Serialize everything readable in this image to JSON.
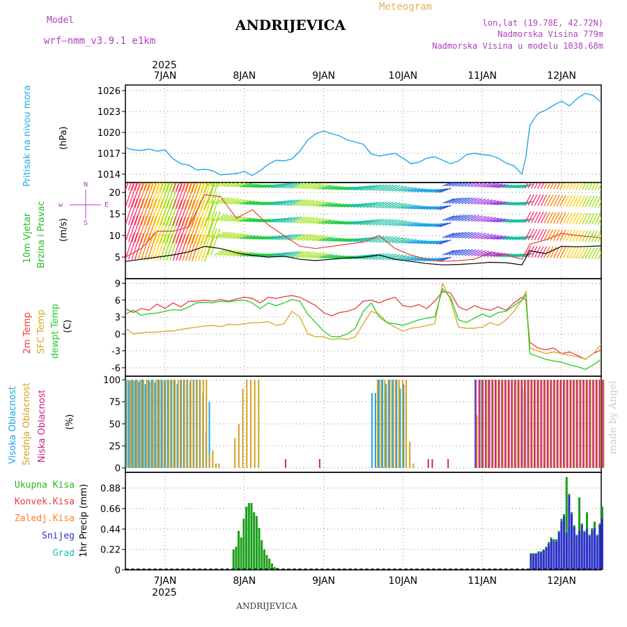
{
  "header": {
    "model_label": "Model",
    "model_name": "wrf—nmm_v3.9.1 e1km",
    "product": "Meteogram",
    "station": "ANDRIJEVICA",
    "coords": "lon,lat (19.78E, 42.72N)",
    "elevation": "Nadmorska Visina 779m",
    "model_elevation": "Nadmorska Visina u modelu 1038.68m",
    "top_year": "2025",
    "bottom_year": "2025",
    "footer_station": "ANDRIJEVICA",
    "credit": "made by Angel"
  },
  "colors": {
    "pressure": "#22a9e6",
    "temp2m": "#ee3b3b",
    "sfc": "#daa520",
    "dewpt": "#22cc22",
    "high_cloud": "#1aa3e8",
    "mid_cloud": "#d4a020",
    "low_cloud": "#c8208a",
    "total_precip": "#1aa01a",
    "conv": "#ee3b3b",
    "frozen": "#ff7f24",
    "snow": "#3030d0",
    "hail": "#20c0b0",
    "wind_label": "#22bb22",
    "compass": "#b040c0"
  },
  "panel_labels": {
    "pressure": {
      "name": "Pritisak na nivou mora",
      "unit": "(hPa)"
    },
    "wind": {
      "name1": "10m Vjetar",
      "name2": "Brzina i Pravac",
      "unit": "(m/s)",
      "compass_w": "w",
      "compass_e": "E",
      "compass_n": "N",
      "compass_s": "S"
    },
    "temp": {
      "t2m": "2m Temp",
      "sfc": "SFC Temp",
      "dew": "dewpt Temp",
      "unit": "(C)"
    },
    "cloud": {
      "high": "Visoka Oblacnost",
      "mid": "Srednja Oblacnost",
      "low": "Niska Oblacnost",
      "unit": "(%)"
    },
    "precip": {
      "total": "Ukupna Kisa",
      "conv": "Konvek.Kisa",
      "frozen": "Zaledj.Kisa",
      "snow": "Snijeg",
      "hail": "Grad",
      "unit": "1hr Precip (mm)"
    }
  },
  "chart_data": [
    {
      "type": "line",
      "title": "Pritisak na nivou mora",
      "ylabel": "(hPa)",
      "xlabel": "",
      "x": [
        6.5,
        6.6,
        6.7,
        6.8,
        6.9,
        7.0,
        7.1,
        7.2,
        7.3,
        7.4,
        7.5,
        7.6,
        7.7,
        7.8,
        7.9,
        8.0,
        8.1,
        8.2,
        8.3,
        8.4,
        8.5,
        8.6,
        8.7,
        8.8,
        8.9,
        9.0,
        9.1,
        9.2,
        9.3,
        9.4,
        9.5,
        9.6,
        9.7,
        9.8,
        9.9,
        10.0,
        10.1,
        10.2,
        10.3,
        10.4,
        10.5,
        10.6,
        10.7,
        10.8,
        10.9,
        11.0,
        11.1,
        11.2,
        11.3,
        11.4,
        11.5,
        11.55,
        11.6,
        11.7,
        11.8,
        11.9,
        12.0,
        12.1,
        12.2,
        12.3,
        12.4,
        12.5
      ],
      "values": [
        1017.8,
        1017.5,
        1017.4,
        1017.6,
        1017.3,
        1017.5,
        1016.2,
        1015.5,
        1015.3,
        1014.6,
        1014.7,
        1014.5,
        1013.9,
        1014.0,
        1014.1,
        1014.4,
        1013.8,
        1014.5,
        1015.4,
        1016.0,
        1015.9,
        1016.2,
        1017.3,
        1018.9,
        1019.8,
        1020.2,
        1019.8,
        1019.5,
        1018.9,
        1018.6,
        1018.3,
        1016.9,
        1016.6,
        1016.8,
        1017.0,
        1016.3,
        1015.5,
        1015.7,
        1016.3,
        1016.5,
        1016.0,
        1015.5,
        1015.9,
        1016.8,
        1017.0,
        1016.8,
        1016.7,
        1016.3,
        1015.6,
        1015.2,
        1014.0,
        1016.5,
        1021.0,
        1022.7,
        1023.2,
        1023.9,
        1024.5,
        1023.8,
        1024.9,
        1025.6,
        1025.3,
        1024.3
      ],
      "yticks": [
        1014,
        1017,
        1020,
        1023,
        1026
      ],
      "ylim": [
        1012.8,
        1026.8
      ],
      "grid": true
    },
    {
      "type": "line",
      "title": "10m Vjetar Brzina i Pravac",
      "ylabel": "(m/s)",
      "x": [
        6.5,
        6.7,
        6.9,
        7.1,
        7.3,
        7.5,
        7.7,
        7.9,
        8.1,
        8.3,
        8.5,
        8.7,
        8.9,
        9.1,
        9.3,
        9.5,
        9.7,
        9.9,
        10.1,
        10.3,
        10.5,
        10.7,
        10.9,
        11.1,
        11.3,
        11.5,
        11.6,
        11.8,
        12.0,
        12.2,
        12.5
      ],
      "series": [
        {
          "name": "speed",
          "values": [
            4.0,
            4.5,
            5.0,
            5.5,
            6.2,
            7.5,
            7.0,
            6.0,
            5.4,
            5.0,
            5.2,
            4.5,
            4.2,
            4.5,
            4.8,
            5.0,
            5.5,
            4.5,
            4.0,
            3.5,
            3.2,
            3.3,
            3.5,
            3.8,
            3.7,
            3.2,
            6.5,
            5.8,
            7.5,
            7.4,
            7.6
          ]
        },
        {
          "name": "gust",
          "values": [
            5.0,
            7.0,
            11.0,
            11.0,
            12.0,
            19.5,
            19.0,
            14.0,
            16.0,
            12.5,
            10.0,
            7.5,
            7.0,
            7.5,
            8.0,
            8.5,
            10.0,
            7.0,
            5.5,
            4.5,
            4.0,
            4.2,
            4.5,
            6.0,
            5.5,
            4.5,
            8.0,
            9.0,
            10.5,
            10.0,
            9.5
          ]
        }
      ],
      "yticks": [
        5,
        10,
        15,
        20
      ],
      "ylim": [
        0,
        22.3
      ],
      "grid": true
    },
    {
      "type": "line",
      "title": "2m Temp / SFC Temp / dewpt Temp",
      "ylabel": "(C)",
      "x": [
        6.5,
        6.6,
        6.7,
        6.8,
        6.9,
        7.0,
        7.1,
        7.2,
        7.3,
        7.4,
        7.5,
        7.6,
        7.7,
        7.8,
        7.9,
        8.0,
        8.1,
        8.2,
        8.3,
        8.4,
        8.5,
        8.6,
        8.7,
        8.8,
        8.9,
        9.0,
        9.1,
        9.2,
        9.3,
        9.4,
        9.5,
        9.6,
        9.7,
        9.8,
        9.9,
        10.0,
        10.1,
        10.2,
        10.3,
        10.4,
        10.5,
        10.6,
        10.7,
        10.8,
        10.9,
        11.0,
        11.1,
        11.2,
        11.3,
        11.4,
        11.5,
        11.55,
        11.6,
        11.7,
        11.8,
        11.9,
        12.0,
        12.1,
        12.2,
        12.3,
        12.4,
        12.5
      ],
      "series": [
        {
          "name": "2m Temp",
          "values": [
            4.5,
            3.8,
            4.5,
            4.2,
            5.3,
            4.5,
            5.5,
            4.8,
            5.8,
            5.8,
            6.0,
            5.8,
            6.1,
            5.8,
            6.2,
            6.5,
            6.3,
            5.5,
            6.5,
            6.3,
            6.6,
            6.8,
            6.5,
            5.8,
            5.0,
            3.8,
            3.2,
            3.8,
            4.0,
            4.5,
            5.8,
            6.0,
            5.5,
            6.1,
            6.5,
            5.0,
            4.8,
            5.2,
            4.5,
            5.8,
            7.5,
            7.3,
            4.8,
            4.2,
            5.0,
            4.5,
            4.2,
            4.8,
            4.2,
            5.5,
            6.5,
            6.0,
            -1.5,
            -2.5,
            -2.8,
            -2.5,
            -3.5,
            -3.2,
            -3.8,
            -4.5,
            -3.5,
            -2.8
          ]
        },
        {
          "name": "SFC Temp",
          "values": [
            1.0,
            0.0,
            0.2,
            0.3,
            0.3,
            0.5,
            0.5,
            0.8,
            1.0,
            1.2,
            1.4,
            1.5,
            1.3,
            1.7,
            1.6,
            1.8,
            2.0,
            2.0,
            2.2,
            1.5,
            1.8,
            4.0,
            3.0,
            0.0,
            -0.5,
            -0.5,
            -1.0,
            -0.8,
            -1.0,
            -0.5,
            1.8,
            4.0,
            3.5,
            2.0,
            1.2,
            0.5,
            1.0,
            1.2,
            1.5,
            1.8,
            9.0,
            6.0,
            1.2,
            1.0,
            1.0,
            1.2,
            2.0,
            1.5,
            2.5,
            4.0,
            6.0,
            7.5,
            -2.5,
            -3.0,
            -3.5,
            -3.2,
            -3.5,
            -3.8,
            -4.0,
            -4.5,
            -3.5,
            -1.8
          ]
        },
        {
          "name": "dewpt Temp",
          "values": [
            3.5,
            4.2,
            3.3,
            3.6,
            3.7,
            4.0,
            4.3,
            4.2,
            4.8,
            5.5,
            5.6,
            5.5,
            5.8,
            5.7,
            5.9,
            6.0,
            5.5,
            4.5,
            5.5,
            5.0,
            5.5,
            6.1,
            5.8,
            3.5,
            2.0,
            0.5,
            -0.5,
            -0.5,
            0.0,
            1.0,
            4.0,
            5.5,
            3.0,
            2.0,
            1.8,
            1.5,
            2.0,
            2.5,
            2.8,
            3.0,
            8.0,
            6.5,
            2.5,
            2.0,
            2.8,
            3.5,
            3.0,
            3.8,
            4.0,
            5.0,
            6.0,
            7.0,
            -3.5,
            -4.0,
            -4.5,
            -4.8,
            -5.0,
            -5.5,
            -5.8,
            -6.3,
            -5.5,
            -4.5
          ]
        }
      ],
      "yticks": [
        -6,
        -3,
        0,
        3,
        6,
        9
      ],
      "ylim": [
        -7.5,
        9.8
      ],
      "grid": true
    },
    {
      "type": "bar",
      "title": "Visoka / Srednja / Niska Oblacnost",
      "ylabel": "(%)",
      "series": [
        {
          "name": "Visoka Oblacnost",
          "segments": [
            {
              "x0": 6.5,
              "x1": 7.55,
              "values": [
                100,
                99,
                100,
                100,
                98,
                100,
                95,
                100,
                100,
                97,
                100,
                100,
                99,
                100,
                100,
                100,
                95,
                100,
                100,
                100,
                98,
                100,
                100,
                100,
                85,
                40,
                75
              ]
            },
            {
              "x0": 9.6,
              "x1": 10.0,
              "values": [
                85,
                85,
                100,
                100,
                95,
                100,
                100,
                100,
                90,
                95
              ]
            },
            {
              "x0": 10.9,
              "x1": 11.5,
              "values": [
                100,
                100,
                100,
                62,
                100,
                100,
                100,
                90
              ]
            }
          ]
        },
        {
          "name": "Srednja Oblacnost",
          "segments": [
            {
              "x0": 6.5,
              "x1": 7.65,
              "values": [
                100,
                100,
                99,
                100,
                100,
                100,
                100,
                98,
                100,
                100,
                100,
                100,
                100,
                100,
                100,
                100,
                100,
                100,
                100,
                100,
                100,
                100,
                100,
                100,
                100,
                100,
                15,
                20,
                5,
                5
              ]
            },
            {
              "x0": 7.85,
              "x1": 8.15,
              "values": [
                34,
                50,
                90,
                100,
                100,
                100,
                100
              ]
            },
            {
              "x0": 9.65,
              "x1": 10.1,
              "values": [
                100,
                100,
                100,
                100,
                100,
                100,
                100,
                100,
                100,
                30,
                5
              ]
            },
            {
              "x0": 10.9,
              "x1": 12.5,
              "values": [
                60,
                100,
                100,
                100,
                100,
                100,
                100,
                100,
                100,
                100,
                100,
                100,
                100,
                100,
                100,
                100,
                100,
                100,
                100,
                100,
                100,
                100,
                100,
                100,
                100,
                100,
                100,
                100,
                100,
                100,
                100,
                100,
                100,
                100,
                100,
                100,
                100,
                100,
                100,
                100
              ]
            }
          ]
        },
        {
          "name": "Niska Oblacnost",
          "segments": [
            {
              "x0": 8.5,
              "x1": 8.53,
              "values": [
                10
              ]
            },
            {
              "x0": 8.93,
              "x1": 8.96,
              "values": [
                10
              ]
            },
            {
              "x0": 10.3,
              "x1": 10.33,
              "values": [
                10
              ]
            },
            {
              "x0": 10.35,
              "x1": 10.38,
              "values": [
                10
              ]
            },
            {
              "x0": 10.55,
              "x1": 10.58,
              "values": [
                10
              ]
            },
            {
              "x0": 10.9,
              "x1": 12.5,
              "values": [
                100,
                100,
                100,
                100,
                100,
                100,
                100,
                100,
                100,
                100,
                100,
                100,
                100,
                100,
                100,
                100,
                100,
                100,
                100,
                100,
                100,
                100,
                100,
                100,
                100,
                100,
                100,
                100,
                100,
                100,
                100,
                100,
                100,
                100,
                100,
                100,
                100,
                100,
                100,
                100
              ]
            }
          ]
        }
      ],
      "yticks": [
        0,
        25,
        50,
        75,
        100
      ],
      "ylim": [
        -5,
        104
      ],
      "grid": true
    },
    {
      "type": "bar",
      "title": "1hr Precip",
      "ylabel": "1hr Precip (mm)",
      "series": [
        {
          "name": "Ukupna Kisa",
          "segments": [
            {
              "x0": 7.85,
              "x1": 8.4,
              "values": [
                0.22,
                0.25,
                0.42,
                0.35,
                0.55,
                0.68,
                0.72,
                0.72,
                0.62,
                0.58,
                0.45,
                0.32,
                0.22,
                0.16,
                0.12,
                0.07,
                0.03,
                0.02
              ]
            },
            {
              "x0": 11.6,
              "x1": 12.5,
              "values": [
                0.18,
                0.18,
                0.18,
                0.2,
                0.2,
                0.22,
                0.25,
                0.3,
                0.35,
                0.33,
                0.33,
                0.42,
                0.55,
                0.6,
                1.0,
                0.82,
                0.62,
                0.48,
                0.38,
                0.78,
                0.5,
                0.42,
                0.62,
                0.38,
                0.45,
                0.52,
                0.38,
                0.5,
                0.68
              ]
            }
          ]
        },
        {
          "name": "Snijeg",
          "segments": [
            {
              "x0": 11.6,
              "x1": 12.5,
              "values": [
                0.17,
                0.17,
                0.17,
                0.19,
                0.19,
                0.21,
                0.24,
                0.28,
                0.33,
                0.31,
                0.31,
                0.4,
                0.52,
                0.58,
                0.4,
                0.8,
                0.6,
                0.46,
                0.36,
                0.42,
                0.48,
                0.4,
                0.44,
                0.36,
                0.43,
                0.45,
                0.36,
                0.48,
                0.55
              ]
            }
          ]
        }
      ],
      "yticks": [
        0,
        0.22,
        0.44,
        0.66,
        0.88
      ],
      "ylim": [
        0,
        1.05
      ],
      "grid": true
    }
  ],
  "x_axis": {
    "range": [
      6.5,
      12.5
    ],
    "ticks": [
      {
        "x": 7,
        "label": "7JAN"
      },
      {
        "x": 8,
        "label": "8JAN"
      },
      {
        "x": 9,
        "label": "9JAN"
      },
      {
        "x": 10,
        "label": "10JAN"
      },
      {
        "x": 11,
        "label": "11JAN"
      },
      {
        "x": 12,
        "label": "12JAN"
      }
    ]
  }
}
